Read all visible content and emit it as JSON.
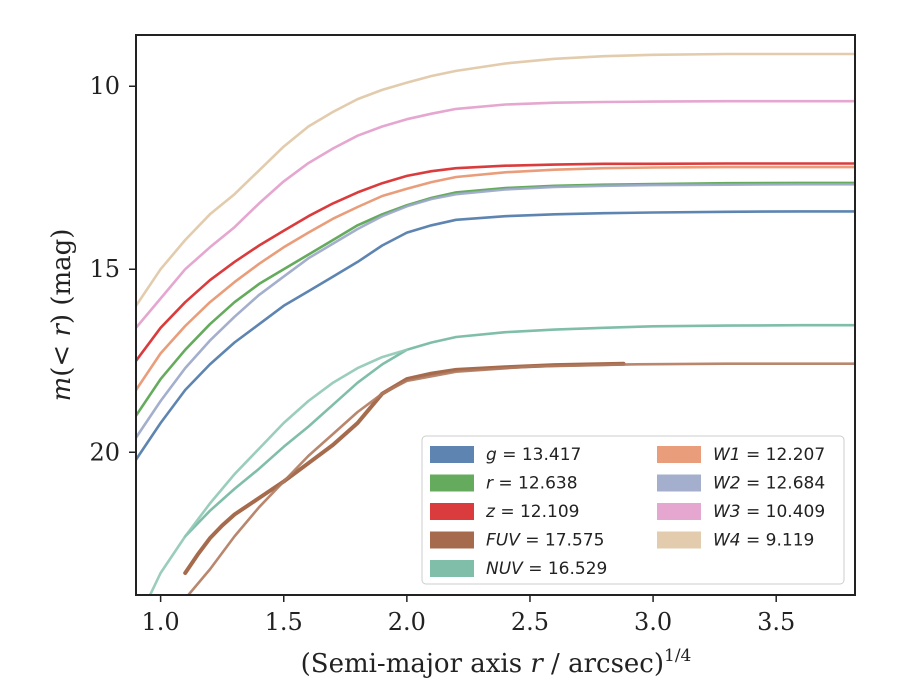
{
  "chart_data": {
    "type": "line",
    "xlabel": "(Semi-major axis r / arcsec)",
    "xlabel_parts": {
      "pre": "(Semi-major axis ",
      "var": "r",
      "post": " / arcsec)",
      "sup": "1/4"
    },
    "ylabel": "m(< r) (mag)",
    "ylabel_parts": {
      "var": "m",
      "mid": "(< ",
      "var2": "r",
      "post": ") (mag)"
    },
    "xlim": [
      0.9,
      3.82
    ],
    "ylim": [
      23.9,
      8.6
    ],
    "y_inverted": true,
    "xticks": [
      1.0,
      1.5,
      2.0,
      2.5,
      3.0,
      3.5
    ],
    "xtick_labels": [
      "1.0",
      "1.5",
      "2.0",
      "2.5",
      "3.0",
      "3.5"
    ],
    "yticks": [
      10,
      15,
      20
    ],
    "ytick_labels": [
      "10",
      "15",
      "20"
    ],
    "grid": false,
    "legend_position": "bottom-right",
    "series": [
      {
        "name": "g",
        "label": "g = 13.417",
        "color": "#4c78a8",
        "x": [
          0.9,
          1.0,
          1.1,
          1.2,
          1.3,
          1.4,
          1.5,
          1.6,
          1.7,
          1.8,
          1.9,
          2.0,
          2.1,
          2.2,
          2.4,
          2.6,
          2.8,
          3.0,
          3.3,
          3.6,
          3.82
        ],
        "y": [
          20.2,
          19.2,
          18.3,
          17.6,
          17.0,
          16.5,
          16.0,
          15.6,
          15.2,
          14.8,
          14.35,
          14.0,
          13.8,
          13.65,
          13.55,
          13.5,
          13.47,
          13.45,
          13.43,
          13.42,
          13.42
        ]
      },
      {
        "name": "r",
        "label": "r = 12.638",
        "color": "#54a24b",
        "x": [
          0.9,
          1.0,
          1.1,
          1.2,
          1.3,
          1.4,
          1.5,
          1.6,
          1.7,
          1.8,
          1.9,
          2.0,
          2.1,
          2.2,
          2.4,
          2.6,
          2.8,
          3.0,
          3.3,
          3.6,
          3.82
        ],
        "y": [
          19.0,
          18.0,
          17.2,
          16.5,
          15.9,
          15.4,
          15.0,
          14.6,
          14.2,
          13.8,
          13.5,
          13.25,
          13.05,
          12.9,
          12.78,
          12.72,
          12.69,
          12.67,
          12.65,
          12.64,
          12.64
        ]
      },
      {
        "name": "z",
        "label": "z = 12.109",
        "color": "#d62728",
        "x": [
          0.9,
          1.0,
          1.1,
          1.2,
          1.3,
          1.4,
          1.5,
          1.6,
          1.7,
          1.8,
          1.9,
          2.0,
          2.1,
          2.2,
          2.4,
          2.6,
          2.8,
          3.0,
          3.3,
          3.6,
          3.82
        ],
        "y": [
          17.5,
          16.6,
          15.9,
          15.3,
          14.8,
          14.35,
          13.95,
          13.55,
          13.2,
          12.9,
          12.65,
          12.45,
          12.32,
          12.24,
          12.17,
          12.14,
          12.12,
          12.12,
          12.11,
          12.11,
          12.11
        ]
      },
      {
        "name": "FUV",
        "label": "FUV = 17.575",
        "color": "#9c5b3a",
        "x": [
          1.1,
          1.15,
          1.2,
          1.25,
          1.3,
          1.4,
          1.5,
          1.6,
          1.7,
          1.8,
          1.85,
          1.9,
          2.0,
          2.1,
          2.2,
          2.4,
          2.6,
          2.88
        ],
        "y": [
          23.3,
          22.8,
          22.35,
          22.0,
          21.7,
          21.25,
          20.8,
          20.3,
          19.8,
          19.2,
          18.8,
          18.4,
          18.0,
          17.85,
          17.75,
          17.68,
          17.62,
          17.58
        ]
      },
      {
        "name": "FUV-ext",
        "color": "#b07a5e",
        "x": [
          1.1,
          1.2,
          1.3,
          1.4,
          1.5,
          1.6,
          1.7,
          1.8,
          1.9,
          2.0,
          2.2,
          2.5,
          2.9,
          3.3,
          3.82
        ],
        "y": [
          24.0,
          23.2,
          22.3,
          21.5,
          20.8,
          20.1,
          19.5,
          18.9,
          18.4,
          18.05,
          17.8,
          17.66,
          17.6,
          17.58,
          17.58
        ]
      },
      {
        "name": "NUV",
        "label": "NUV = 16.529",
        "color": "#72b7a1",
        "x": [
          1.1,
          1.2,
          1.3,
          1.4,
          1.5,
          1.6,
          1.7,
          1.8,
          1.9,
          2.0,
          2.1,
          2.2,
          2.4,
          2.6,
          2.8,
          3.0,
          3.3,
          3.6,
          3.82
        ],
        "y": [
          22.3,
          21.6,
          21.0,
          20.45,
          19.85,
          19.3,
          18.7,
          18.1,
          17.6,
          17.2,
          17.0,
          16.85,
          16.72,
          16.65,
          16.6,
          16.56,
          16.54,
          16.53,
          16.53
        ]
      },
      {
        "name": "NUV-ext",
        "color": "#8fc8b5",
        "x": [
          0.95,
          1.0,
          1.1,
          1.2,
          1.3,
          1.4,
          1.5,
          1.6,
          1.7,
          1.8,
          1.9,
          2.0
        ],
        "y": [
          24.0,
          23.3,
          22.3,
          21.4,
          20.6,
          19.9,
          19.2,
          18.6,
          18.1,
          17.7,
          17.4,
          17.2
        ]
      },
      {
        "name": "W1",
        "label": "W1 = 12.207",
        "color": "#e8926c",
        "x": [
          0.9,
          1.0,
          1.1,
          1.2,
          1.3,
          1.4,
          1.5,
          1.6,
          1.7,
          1.8,
          1.9,
          2.0,
          2.1,
          2.2,
          2.4,
          2.6,
          2.8,
          3.0,
          3.3,
          3.6,
          3.82
        ],
        "y": [
          18.3,
          17.3,
          16.55,
          15.9,
          15.35,
          14.85,
          14.4,
          14.0,
          13.62,
          13.3,
          13.0,
          12.8,
          12.62,
          12.48,
          12.35,
          12.28,
          12.24,
          12.22,
          12.21,
          12.21,
          12.21
        ]
      },
      {
        "name": "W2",
        "label": "W2 = 12.684",
        "color": "#9aa6c9",
        "x": [
          0.9,
          1.0,
          1.1,
          1.2,
          1.3,
          1.4,
          1.5,
          1.6,
          1.7,
          1.8,
          1.9,
          2.0,
          2.1,
          2.2,
          2.4,
          2.6,
          2.8,
          3.0,
          3.3,
          3.6,
          3.82
        ],
        "y": [
          19.6,
          18.6,
          17.7,
          16.95,
          16.3,
          15.7,
          15.2,
          14.7,
          14.3,
          13.9,
          13.55,
          13.28,
          13.08,
          12.95,
          12.82,
          12.75,
          12.72,
          12.7,
          12.69,
          12.68,
          12.68
        ]
      },
      {
        "name": "W3",
        "label": "W3 = 10.409",
        "color": "#e29dcb",
        "x": [
          0.9,
          1.0,
          1.1,
          1.2,
          1.3,
          1.4,
          1.5,
          1.6,
          1.7,
          1.8,
          1.9,
          2.0,
          2.1,
          2.2,
          2.4,
          2.6,
          2.8,
          3.0,
          3.3,
          3.6,
          3.82
        ],
        "y": [
          16.6,
          15.8,
          15.0,
          14.4,
          13.85,
          13.2,
          12.6,
          12.1,
          11.7,
          11.35,
          11.1,
          10.9,
          10.75,
          10.62,
          10.5,
          10.45,
          10.43,
          10.42,
          10.41,
          10.41,
          10.41
        ]
      },
      {
        "name": "W4",
        "label": "W4 = 9.119",
        "color": "#dfc7a4",
        "x": [
          0.9,
          1.0,
          1.1,
          1.2,
          1.3,
          1.4,
          1.5,
          1.6,
          1.7,
          1.8,
          1.9,
          2.0,
          2.1,
          2.2,
          2.4,
          2.6,
          2.8,
          3.0,
          3.3,
          3.6,
          3.82
        ],
        "y": [
          16.0,
          15.0,
          14.2,
          13.5,
          12.95,
          12.3,
          11.65,
          11.1,
          10.7,
          10.35,
          10.1,
          9.9,
          9.72,
          9.58,
          9.38,
          9.25,
          9.18,
          9.14,
          9.12,
          9.12,
          9.12
        ]
      }
    ],
    "legend": [
      {
        "label": "g = 13.417",
        "var": "g",
        "value": "13.417",
        "color": "#4c78a8"
      },
      {
        "label": "r = 12.638",
        "var": "r",
        "value": "12.638",
        "color": "#54a24b"
      },
      {
        "label": "z = 12.109",
        "var": "z",
        "value": "12.109",
        "color": "#d62728"
      },
      {
        "label": "FUV = 17.575",
        "var": "FUV",
        "value": "17.575",
        "color": "#9c5b3a"
      },
      {
        "label": "NUV = 16.529",
        "var": "NUV",
        "value": "16.529",
        "color": "#72b7a1"
      },
      {
        "label": "W1 = 12.207",
        "var": "W1",
        "value": "12.207",
        "color": "#e8926c"
      },
      {
        "label": "W2 = 12.684",
        "var": "W2",
        "value": "12.684",
        "color": "#9aa6c9"
      },
      {
        "label": "W3 = 10.409",
        "var": "W3",
        "value": "10.409",
        "color": "#e29dcb"
      },
      {
        "label": "W4 = 9.119",
        "var": "W4",
        "value": "9.119",
        "color": "#dfc7a4"
      }
    ]
  }
}
